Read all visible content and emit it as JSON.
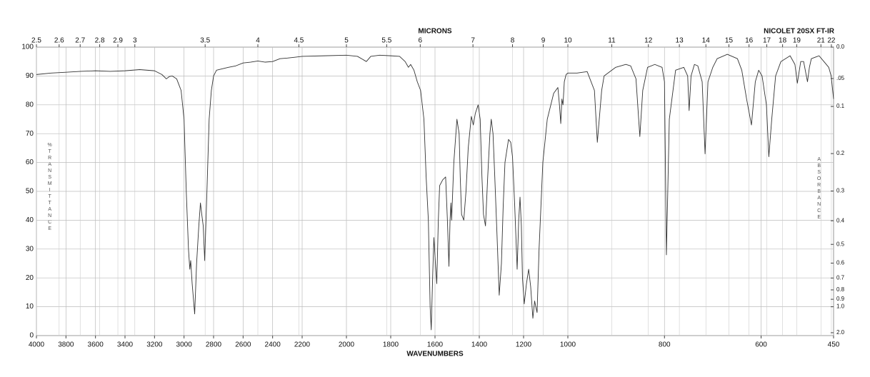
{
  "chart_data": {
    "type": "line",
    "title": "NICOLET 20SX FT-IR",
    "xlabel": "WAVENUMBERS",
    "x2label": "MICRONS",
    "ylabel": "%TRANSMITTANCE",
    "y2label": "ABSORBANCE",
    "xlim": [
      4000,
      450
    ],
    "x_scale_breaks": [
      2200,
      1000
    ],
    "xticks": [
      4000,
      3800,
      3600,
      3400,
      3200,
      3000,
      2800,
      2600,
      2400,
      2200,
      2000,
      1800,
      1600,
      1400,
      1200,
      1000,
      800,
      600,
      450
    ],
    "x2ticks": [
      2.5,
      2.6,
      2.7,
      2.8,
      2.9,
      3,
      3.5,
      4,
      4.5,
      5,
      5.5,
      6,
      7,
      8,
      9,
      10,
      11,
      12,
      13,
      14,
      15,
      16,
      17,
      18,
      19,
      21,
      22
    ],
    "ylim": [
      0,
      100
    ],
    "yticks": [
      0,
      10,
      20,
      30,
      40,
      50,
      60,
      70,
      80,
      90,
      100
    ],
    "y2_scale": "absorbance",
    "y2ticks": [
      {
        "value": 0,
        "label": "0.0"
      },
      {
        "value": 0.05,
        "label": ".05"
      },
      0.1,
      0.2,
      0.3,
      0.4,
      0.5,
      0.6,
      0.7,
      0.8,
      0.9,
      {
        "value": 1,
        "label": "1.0"
      },
      {
        "value": 2,
        "label": "2.0"
      }
    ],
    "grid": true,
    "color": "#333333",
    "x": [
      4000,
      3900,
      3800,
      3700,
      3600,
      3500,
      3400,
      3300,
      3200,
      3150,
      3120,
      3100,
      3080,
      3050,
      3020,
      3000,
      2985,
      2970,
      2961,
      2955,
      2945,
      2928,
      2915,
      2900,
      2889,
      2880,
      2870,
      2860,
      2845,
      2830,
      2815,
      2800,
      2780,
      2740,
      2700,
      2650,
      2600,
      2550,
      2500,
      2450,
      2400,
      2350,
      2300,
      2250,
      2200,
      2100,
      2000,
      1950,
      1910,
      1890,
      1850,
      1800,
      1760,
      1735,
      1720,
      1710,
      1695,
      1680,
      1665,
      1650,
      1640,
      1630,
      1622,
      1617,
      1610,
      1605,
      1598,
      1592,
      1585,
      1579,
      1565,
      1552,
      1544,
      1537,
      1532,
      1528,
      1525,
      1515,
      1501,
      1491,
      1486,
      1480,
      1470,
      1460,
      1450,
      1436,
      1427,
      1418,
      1405,
      1396,
      1388,
      1381,
      1372,
      1362,
      1352,
      1346,
      1338,
      1330,
      1320,
      1310,
      1300,
      1292,
      1284,
      1268,
      1258,
      1250,
      1240,
      1229,
      1222,
      1216,
      1210,
      1205,
      1197,
      1187,
      1177,
      1168,
      1158,
      1150,
      1145,
      1139,
      1130,
      1113,
      1093,
      1064,
      1045,
      1038,
      1032,
      1027,
      1022,
      1016,
      1008,
      1000,
      981,
      960,
      945,
      939,
      930,
      925,
      901,
      880,
      870,
      859,
      851,
      845,
      835,
      820,
      805,
      800,
      796,
      790,
      777,
      760,
      752,
      749,
      745,
      738,
      731,
      722,
      716,
      710,
      700,
      691,
      670,
      649,
      640,
      630,
      620,
      612,
      605,
      598,
      589,
      584,
      578,
      570,
      559,
      540,
      530,
      525,
      518,
      512,
      504,
      500,
      496,
      480,
      470,
      460,
      455,
      450
    ],
    "values": [
      90.5,
      91,
      91.3,
      91.6,
      91.8,
      91.6,
      91.8,
      92.2,
      91.8,
      90.5,
      89,
      89.8,
      90,
      89,
      85,
      75,
      50,
      30,
      23,
      26,
      18,
      7.5,
      25,
      38,
      46,
      42,
      38,
      26,
      50,
      75,
      85,
      90,
      92,
      92.5,
      93,
      93.5,
      94.5,
      94.8,
      95.2,
      94.8,
      95,
      96,
      96.2,
      96.5,
      96.8,
      97,
      97.2,
      96.8,
      95,
      96.8,
      97.2,
      97,
      96.8,
      95,
      93,
      94,
      92,
      88,
      85,
      75,
      55,
      40,
      10,
      2,
      22,
      34,
      25,
      18,
      40,
      52,
      54,
      55,
      40,
      24,
      40,
      46,
      40,
      60,
      75,
      70,
      55,
      42,
      40,
      50,
      65,
      76,
      73,
      77,
      80,
      75,
      55,
      42,
      38,
      55,
      70,
      75,
      70,
      55,
      35,
      14,
      25,
      45,
      60,
      68,
      67,
      62,
      45,
      23,
      40,
      48,
      38,
      20,
      11,
      18,
      23,
      17,
      6,
      12,
      10,
      8,
      30,
      60,
      75,
      84,
      86,
      80,
      73.5,
      82,
      80,
      88,
      90.5,
      91,
      91,
      91.5,
      85,
      67,
      85,
      90,
      93,
      94,
      93.5,
      89,
      69,
      85,
      93,
      94,
      93,
      88,
      28,
      75,
      92,
      93,
      90,
      78,
      90,
      94,
      93.5,
      88,
      63,
      88,
      93,
      96,
      97.5,
      96,
      92,
      82,
      73,
      88,
      92,
      90,
      80,
      62,
      75,
      90,
      95,
      97,
      94,
      87.5,
      95,
      95,
      88,
      93,
      96,
      97,
      95,
      93,
      90,
      82
    ]
  }
}
